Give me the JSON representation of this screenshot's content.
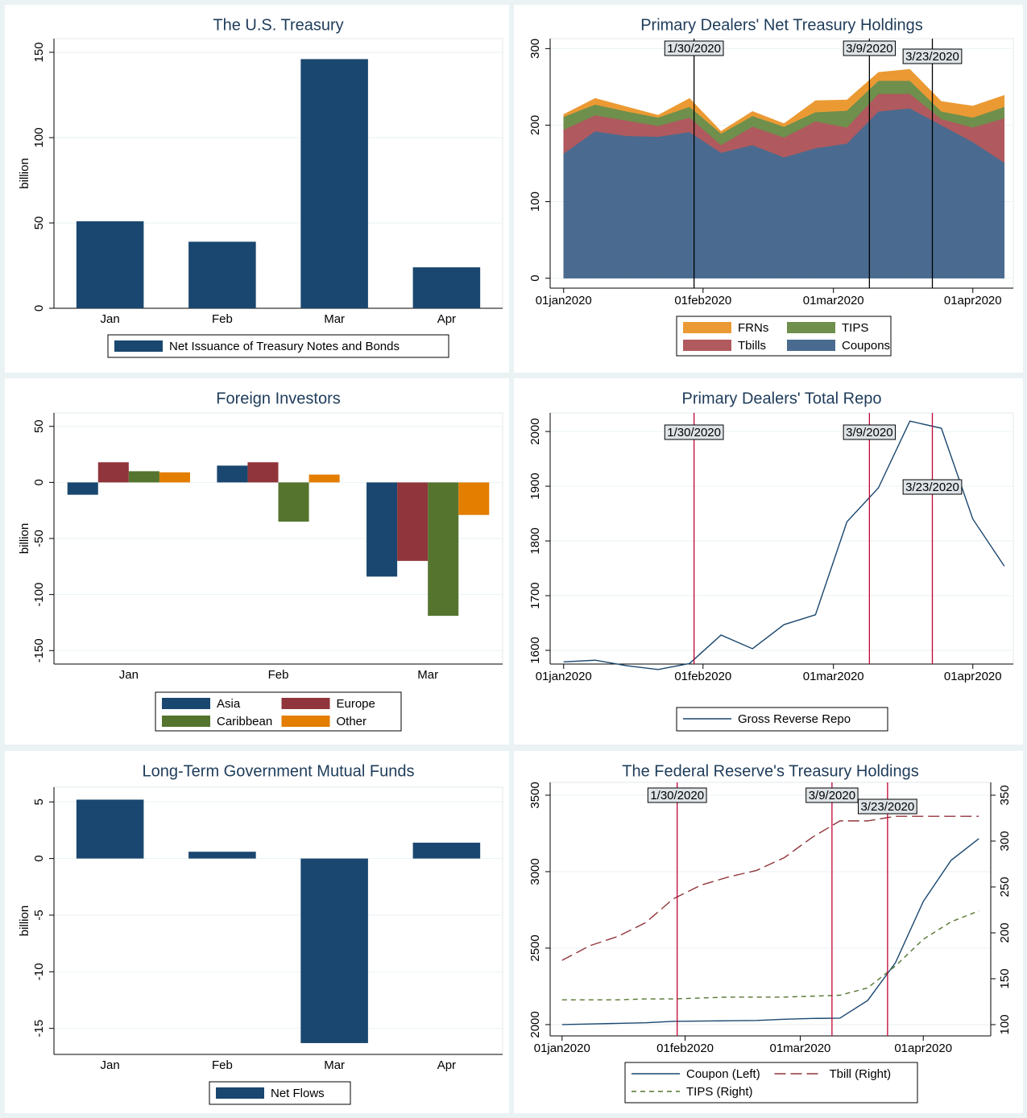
{
  "chart_data": [
    {
      "type": "bar",
      "title": "The U.S. Treasury",
      "ylabel": "billion",
      "categories": [
        "Jan",
        "Feb",
        "Mar",
        "Apr"
      ],
      "series": [
        {
          "name": "Net Issuance of Treasury Notes and Bonds",
          "color": "#1a476f",
          "values": [
            51,
            39,
            146,
            24
          ]
        }
      ],
      "ylim": [
        0,
        158
      ],
      "yticks": [
        0,
        50,
        100,
        150
      ],
      "grid": true
    },
    {
      "type": "area",
      "title": "Primary Dealers' Net Treasury Holdings",
      "x": [
        "2020-01-01",
        "2020-01-08",
        "2020-01-15",
        "2020-01-22",
        "2020-01-29",
        "2020-02-05",
        "2020-02-12",
        "2020-02-19",
        "2020-02-26",
        "2020-03-04",
        "2020-03-11",
        "2020-03-18",
        "2020-03-25",
        "2020-04-01",
        "2020-04-08"
      ],
      "series": [
        {
          "name": "Coupons",
          "color": "#4a6b8f",
          "values": [
            163,
            192,
            186,
            185,
            191,
            164,
            174,
            158,
            170,
            176,
            218,
            222,
            200,
            178,
            151
          ]
        },
        {
          "name": "Tbills",
          "color": "#b0595e",
          "values": [
            31,
            21,
            20,
            14,
            19,
            10,
            24,
            26,
            35,
            21,
            23,
            19,
            8,
            19,
            58
          ]
        },
        {
          "name": "TIPS",
          "color": "#6f8f4c",
          "values": [
            17,
            14,
            12,
            11,
            14,
            15,
            14,
            14,
            12,
            22,
            17,
            17,
            10,
            13,
            15
          ]
        },
        {
          "name": "FRNs",
          "color": "#eb9a33",
          "values": [
            3,
            8,
            6,
            3,
            11,
            3,
            6,
            4,
            15,
            14,
            11,
            15,
            13,
            15,
            15
          ]
        }
      ],
      "xlim": [
        "2019-12-29",
        "2020-04-10"
      ],
      "xticks": [
        {
          "value": "2020-01-01",
          "label": "01jan2020"
        },
        {
          "value": "2020-02-01",
          "label": "01feb2020"
        },
        {
          "value": "2020-03-01",
          "label": "01mar2020"
        },
        {
          "value": "2020-04-01",
          "label": "01apr2020"
        }
      ],
      "ylim": [
        -13,
        313
      ],
      "yticks": [
        0,
        100,
        200,
        300
      ],
      "grid": true,
      "annotation_color": "#000000",
      "annotations": [
        {
          "x": "2020-01-30",
          "label": "1/30/2020"
        },
        {
          "x": "2020-03-09",
          "label": "3/9/2020"
        },
        {
          "x": "2020-03-23",
          "label": "3/23/2020"
        }
      ]
    },
    {
      "type": "bar",
      "title": "Foreign Investors",
      "ylabel": "billion",
      "categories": [
        "Jan",
        "Feb",
        "Mar"
      ],
      "series": [
        {
          "name": "Asia",
          "color": "#1a476f",
          "values": [
            -11,
            15,
            -84
          ]
        },
        {
          "name": "Europe",
          "color": "#90353b",
          "values": [
            18,
            18,
            -70
          ]
        },
        {
          "name": "Caribbean",
          "color": "#55752f",
          "values": [
            10,
            -35,
            -119
          ]
        },
        {
          "name": "Other",
          "color": "#e37e00",
          "values": [
            9,
            7,
            -29
          ]
        }
      ],
      "ylim": [
        -162,
        62
      ],
      "yticks": [
        50,
        0,
        -50,
        -100,
        -150
      ],
      "grid": true
    },
    {
      "type": "line",
      "title": "Primary Dealers' Total Repo",
      "x": [
        "2020-01-01",
        "2020-01-08",
        "2020-01-15",
        "2020-01-22",
        "2020-01-29",
        "2020-02-05",
        "2020-02-12",
        "2020-02-19",
        "2020-02-26",
        "2020-03-04",
        "2020-03-11",
        "2020-03-18",
        "2020-03-25",
        "2020-04-01",
        "2020-04-08"
      ],
      "series": [
        {
          "name": "Gross Reverse Repo",
          "color": "#1a476f",
          "dash": "solid",
          "values": [
            1579,
            1582,
            1572,
            1565,
            1576,
            1628,
            1603,
            1647,
            1665,
            1835,
            1897,
            2019,
            2006,
            1840,
            1754
          ]
        }
      ],
      "xlim": [
        "2019-12-29",
        "2020-04-10"
      ],
      "xticks": [
        {
          "value": "2020-01-01",
          "label": "01jan2020"
        },
        {
          "value": "2020-02-01",
          "label": "01feb2020"
        },
        {
          "value": "2020-03-01",
          "label": "01mar2020"
        },
        {
          "value": "2020-04-01",
          "label": "01apr2020"
        }
      ],
      "ylim": [
        1575,
        2034
      ],
      "yticks": [
        1600,
        1700,
        1800,
        1900,
        2000
      ],
      "grid": true,
      "annotation_color": "#c10534",
      "annotations": [
        {
          "x": "2020-01-30",
          "label": "1/30/2020"
        },
        {
          "x": "2020-03-09",
          "label": "3/9/2020"
        },
        {
          "x": "2020-03-23",
          "label": "3/23/2020"
        }
      ]
    },
    {
      "type": "bar",
      "title": "Long-Term Government Mutual Funds",
      "ylabel": "billion",
      "categories": [
        "Jan",
        "Feb",
        "Mar",
        "Apr"
      ],
      "series": [
        {
          "name": "Net Flows",
          "color": "#1a476f",
          "values": [
            5.2,
            0.6,
            -16.3,
            1.4
          ]
        }
      ],
      "ylim": [
        -17.3,
        6.3
      ],
      "yticks": [
        5,
        0,
        -5,
        -10,
        -15
      ],
      "grid": true
    },
    {
      "type": "line",
      "title": "The Federal Reserve's Treasury Holdings",
      "x": [
        "2020-01-01",
        "2020-01-08",
        "2020-01-15",
        "2020-01-22",
        "2020-01-29",
        "2020-02-05",
        "2020-02-12",
        "2020-02-19",
        "2020-02-26",
        "2020-03-04",
        "2020-03-11",
        "2020-03-18",
        "2020-03-25",
        "2020-04-01",
        "2020-04-08",
        "2020-04-15"
      ],
      "series": [
        {
          "name": "Coupon (Left)",
          "color": "#1a476f",
          "dash": "solid",
          "values": [
            2000,
            2004,
            2008,
            2012,
            2021,
            2023,
            2025,
            2027,
            2035,
            2040,
            2042,
            2158,
            2405,
            2805,
            3074,
            3216
          ]
        },
        {
          "name": "Tbill (Right)",
          "color": "#90353b",
          "dash": "longdash",
          "axis": "y2",
          "values": [
            170,
            186,
            196,
            211,
            237,
            252,
            261,
            268,
            282,
            304,
            322,
            322,
            327,
            327,
            327,
            327
          ]
        },
        {
          "name": "TIPS (Right)",
          "color": "#55752f",
          "dash": "dash",
          "axis": "y2",
          "values": [
            127,
            127,
            127,
            128,
            128,
            129,
            130,
            130,
            130,
            131,
            132,
            140,
            164,
            193,
            212,
            224
          ]
        }
      ],
      "xlim": [
        "2019-12-29",
        "2020-04-18"
      ],
      "xticks": [
        {
          "value": "2020-01-01",
          "label": "01jan2020"
        },
        {
          "value": "2020-02-01",
          "label": "01feb2020"
        },
        {
          "value": "2020-03-01",
          "label": "01mar2020"
        },
        {
          "value": "2020-04-01",
          "label": "01apr2020"
        }
      ],
      "ylim": [
        1926,
        3584
      ],
      "yticks": [
        2000,
        2500,
        3000,
        3500
      ],
      "y2lim": [
        87.7,
        364
      ],
      "y2ticks": [
        100,
        150,
        200,
        250,
        300,
        350
      ],
      "grid": true,
      "annotation_color": "#c10534",
      "annotations": [
        {
          "x": "2020-01-30",
          "label": "1/30/2020"
        },
        {
          "x": "2020-03-09",
          "label": "3/9/2020"
        },
        {
          "x": "2020-03-23",
          "label": "3/23/2020"
        }
      ]
    }
  ]
}
